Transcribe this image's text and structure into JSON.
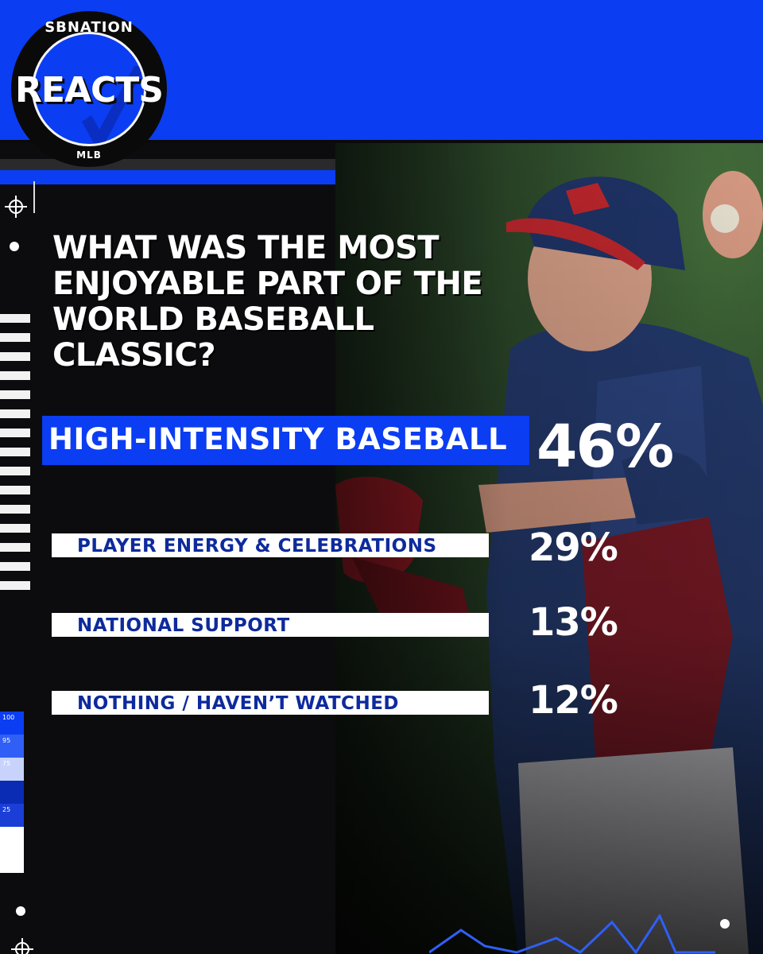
{
  "brand": {
    "top": "SBNATION",
    "main": "REACTS",
    "sub": "MLB"
  },
  "question": {
    "line1": "WHAT WAS THE MOST",
    "line2": "ENJOYABLE PART OF THE",
    "line3": "WORLD BASEBALL CLASSIC?"
  },
  "results": [
    {
      "label": "HIGH-INTENSITY BASEBALL",
      "percent": "46%",
      "value": 46
    },
    {
      "label": "PLAYER ENERGY & CELEBRATIONS",
      "percent": "29%",
      "value": 29
    },
    {
      "label": "NATIONAL SUPPORT",
      "percent": "13%",
      "value": 13
    },
    {
      "label": "NOTHING / HAVEN’T WATCHED",
      "percent": "12%",
      "value": 12
    }
  ],
  "scale_labels": [
    "100",
    "95",
    "75",
    "25"
  ],
  "colors": {
    "brand_blue": "#0b3df2",
    "answer_text": "#0e2a9c",
    "background": "#0b0b0d"
  },
  "icons": [
    "crosshair-icon",
    "dot-icon"
  ]
}
